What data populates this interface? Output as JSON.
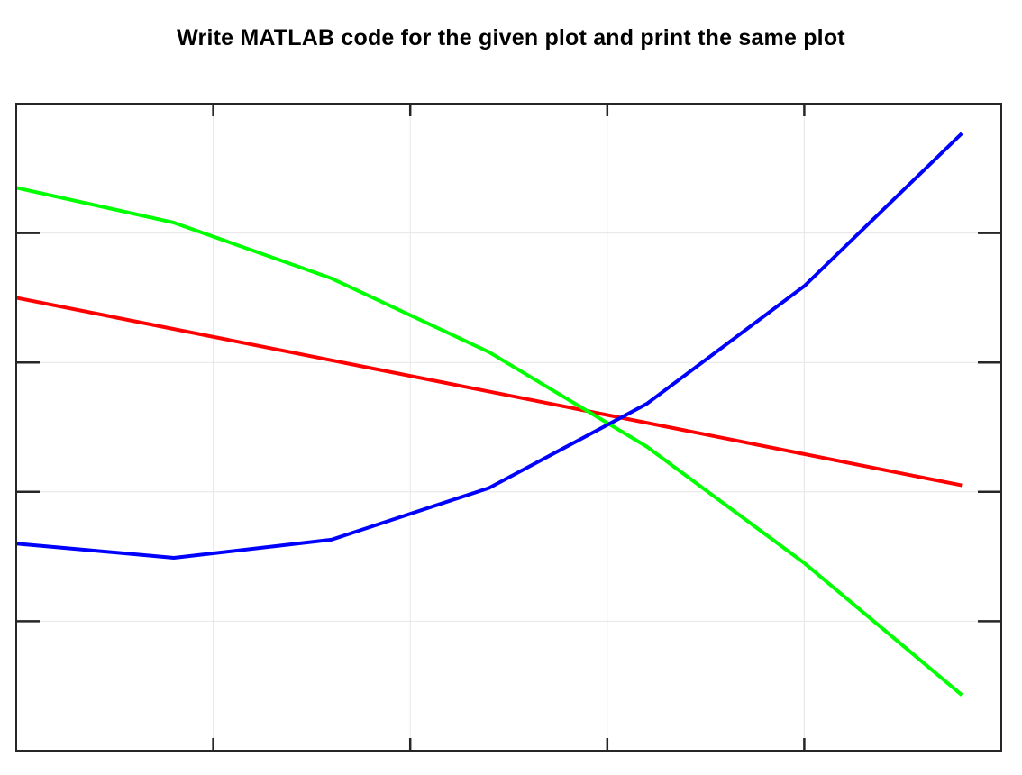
{
  "page_title": "Write MATLAB code for the given plot and print the same plot",
  "chart_data": {
    "type": "line",
    "title": "",
    "xlabel": "",
    "ylabel": "",
    "xlim": [
      0,
      5
    ],
    "ylim": [
      0,
      5
    ],
    "xticks": [
      0,
      1,
      2,
      3,
      4,
      5
    ],
    "yticks": [
      0,
      1,
      2,
      3,
      4,
      5
    ],
    "tick_labels_visible": false,
    "grid": true,
    "box": true,
    "series": [
      {
        "color": "#ff0000",
        "x": [
          0,
          4.8
        ],
        "y": [
          3.5,
          2.05
        ]
      },
      {
        "color": "#00ff00",
        "x": [
          0,
          0.8,
          1.6,
          2.4,
          3.2,
          4.0,
          4.8
        ],
        "y": [
          4.35,
          4.08,
          3.65,
          3.08,
          2.35,
          1.45,
          0.43
        ]
      },
      {
        "color": "#0000ff",
        "x": [
          0,
          0.8,
          1.6,
          2.4,
          3.2,
          4.0,
          4.8
        ],
        "y": [
          1.6,
          1.49,
          1.63,
          2.03,
          2.68,
          3.59,
          4.77
        ]
      }
    ]
  }
}
